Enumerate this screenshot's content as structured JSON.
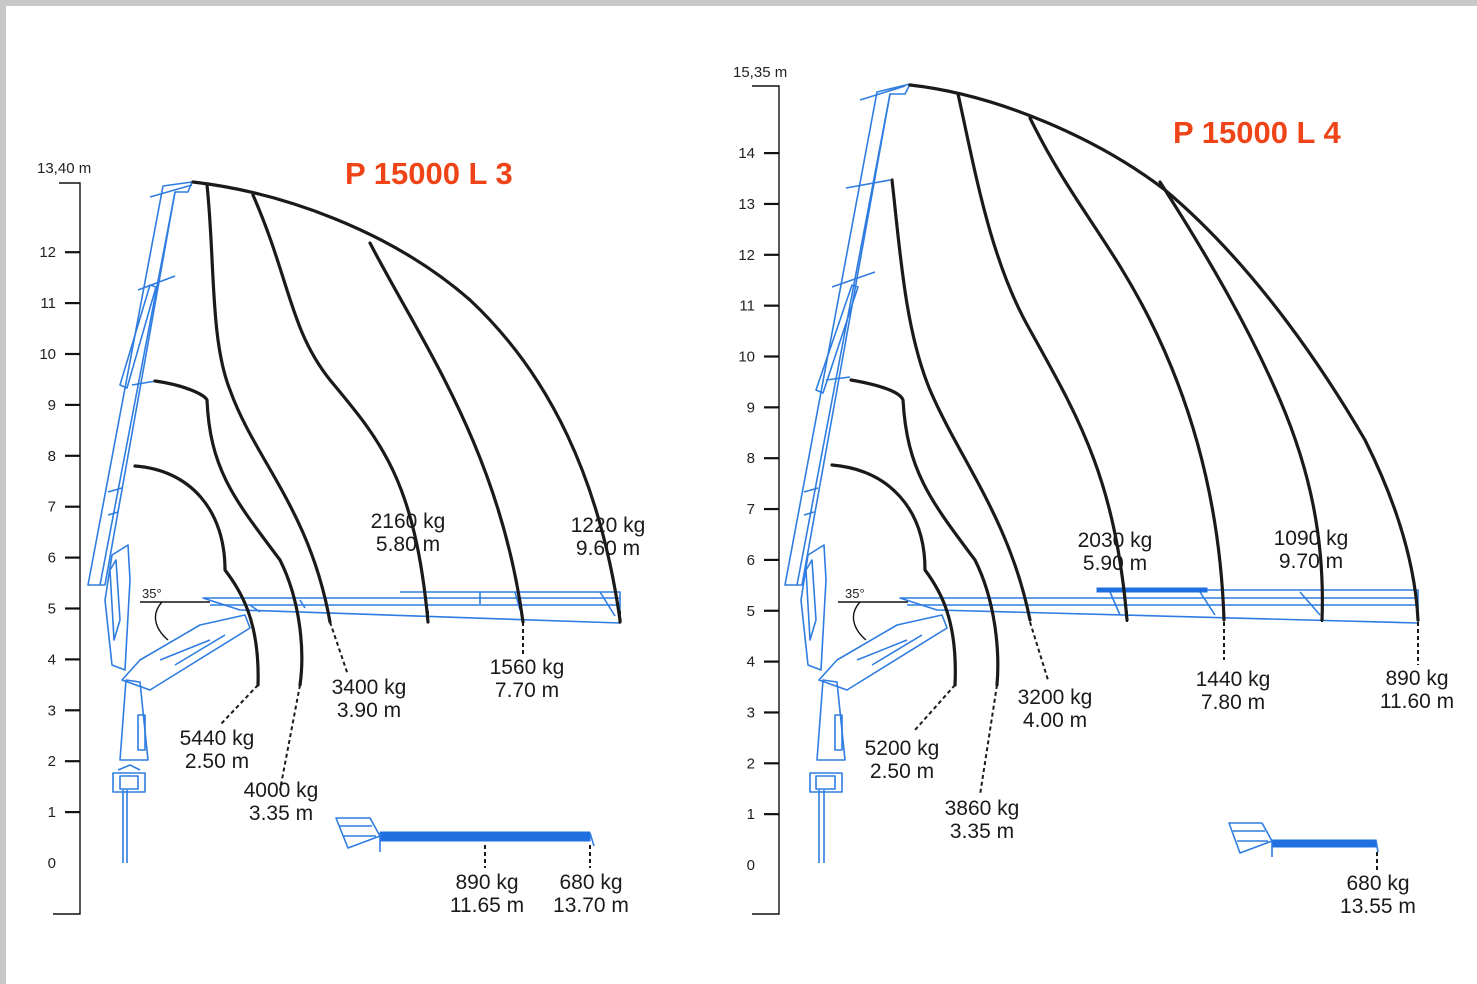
{
  "colors": {
    "title": "#ee4418",
    "crane": "#2f7de1",
    "curves": "#1a1a1a",
    "background": "#c8c8c8"
  },
  "diagrams": [
    {
      "title": "P 15000 L 3",
      "max_height_label": "13,40 m",
      "angle_label": "35°",
      "y_ticks": [
        "0",
        "1",
        "2",
        "3",
        "4",
        "5",
        "6",
        "7",
        "8",
        "9",
        "10",
        "11",
        "12"
      ],
      "loads": [
        {
          "kg": "5440 kg",
          "m": "2.50 m"
        },
        {
          "kg": "4000 kg",
          "m": "3.35 m"
        },
        {
          "kg": "3400 kg",
          "m": "3.90 m"
        },
        {
          "kg": "2160 kg",
          "m": "5.80 m"
        },
        {
          "kg": "1560 kg",
          "m": "7.70 m"
        },
        {
          "kg": "1220 kg",
          "m": "9.60 m"
        },
        {
          "kg": "890 kg",
          "m": "11.65 m"
        },
        {
          "kg": "680 kg",
          "m": "13.70 m"
        }
      ]
    },
    {
      "title": "P 15000 L 4",
      "max_height_label": "15,35 m",
      "angle_label": "35°",
      "y_ticks": [
        "0",
        "1",
        "2",
        "3",
        "4",
        "5",
        "6",
        "7",
        "8",
        "9",
        "10",
        "11",
        "12",
        "13",
        "14"
      ],
      "loads": [
        {
          "kg": "5200 kg",
          "m": "2.50 m"
        },
        {
          "kg": "3860 kg",
          "m": "3.35 m"
        },
        {
          "kg": "3200 kg",
          "m": "4.00 m"
        },
        {
          "kg": "2030 kg",
          "m": "5.90 m"
        },
        {
          "kg": "1440 kg",
          "m": "7.80 m"
        },
        {
          "kg": "1090 kg",
          "m": "9.70 m"
        },
        {
          "kg": "890 kg",
          "m": "11.60 m"
        },
        {
          "kg": "680 kg",
          "m": "13.55 m"
        }
      ]
    }
  ]
}
